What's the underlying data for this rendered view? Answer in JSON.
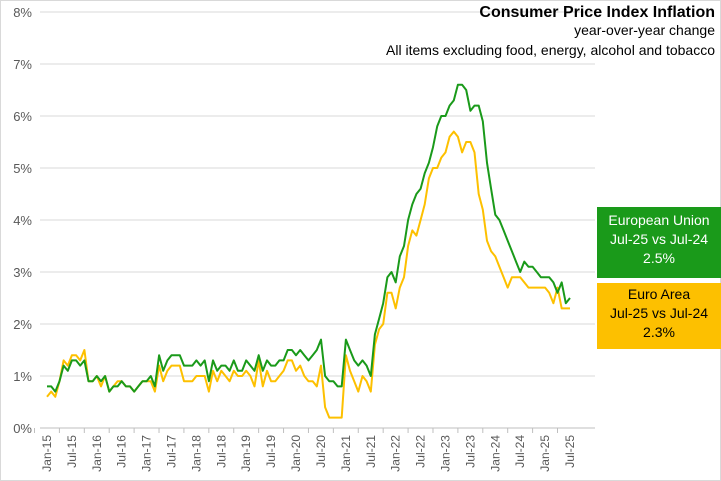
{
  "title": "Consumer Price Index Inflation",
  "subtitle": "year-over-year change",
  "subtitle2": "All items excluding food, energy, alcohol and tobacco",
  "eu_box": {
    "line1": "European Union",
    "line2": "Jul-25 vs Jul-24",
    "line3": "2.5%"
  },
  "ea_box": {
    "line1": "Euro Area",
    "line2": "Jul-25 vs Jul-24",
    "line3": "2.3%"
  },
  "chart_data": {
    "type": "line",
    "title": "Consumer Price Index Inflation",
    "ylim": [
      0,
      8
    ],
    "y_ticks": [
      "0%",
      "1%",
      "2%",
      "3%",
      "4%",
      "5%",
      "6%",
      "7%",
      "8%"
    ],
    "x_start": "Jan-15",
    "x_ticks": [
      "Jan-15",
      "Jul-15",
      "Jan-16",
      "Jul-16",
      "Jan-17",
      "Jul-17",
      "Jan-18",
      "Jul-18",
      "Jan-19",
      "Jul-19",
      "Jan-20",
      "Jul-20",
      "Jan-21",
      "Jul-21",
      "Jan-22",
      "Jul-22",
      "Jan-23",
      "Jul-23",
      "Jan-24",
      "Jul-24",
      "Jan-25",
      "Jul-25"
    ],
    "grid": true,
    "series": [
      {
        "name": "European Union",
        "color": "#1a9a1a",
        "values": [
          0.8,
          0.8,
          0.7,
          0.9,
          1.2,
          1.1,
          1.3,
          1.3,
          1.2,
          1.3,
          0.9,
          0.9,
          1.0,
          0.9,
          1.0,
          0.7,
          0.8,
          0.8,
          0.9,
          0.8,
          0.8,
          0.7,
          0.8,
          0.9,
          0.9,
          1.0,
          0.8,
          1.4,
          1.1,
          1.3,
          1.4,
          1.4,
          1.4,
          1.2,
          1.2,
          1.2,
          1.3,
          1.2,
          1.3,
          0.9,
          1.3,
          1.1,
          1.2,
          1.2,
          1.1,
          1.3,
          1.1,
          1.1,
          1.3,
          1.2,
          1.1,
          1.4,
          1.1,
          1.3,
          1.2,
          1.2,
          1.3,
          1.3,
          1.5,
          1.5,
          1.4,
          1.5,
          1.4,
          1.3,
          1.4,
          1.5,
          1.7,
          1.0,
          0.9,
          0.9,
          0.8,
          0.8,
          1.7,
          1.5,
          1.3,
          1.2,
          1.3,
          1.2,
          1.0,
          1.8,
          2.1,
          2.4,
          2.9,
          3.0,
          2.8,
          3.3,
          3.5,
          4.0,
          4.3,
          4.5,
          4.6,
          4.9,
          5.1,
          5.4,
          5.8,
          6.0,
          6.0,
          6.2,
          6.3,
          6.6,
          6.6,
          6.5,
          6.1,
          6.2,
          6.2,
          5.9,
          5.1,
          4.6,
          4.1,
          4.0,
          3.8,
          3.6,
          3.4,
          3.2,
          3.0,
          3.2,
          3.1,
          3.1,
          3.0,
          2.9,
          2.9,
          2.9,
          2.8,
          2.6,
          2.8,
          2.4,
          2.5
        ]
      },
      {
        "name": "Euro Area",
        "color": "#fdc000",
        "values": [
          0.6,
          0.7,
          0.6,
          0.9,
          1.3,
          1.2,
          1.4,
          1.4,
          1.3,
          1.5,
          0.9,
          0.9,
          1.0,
          0.8,
          1.0,
          0.7,
          0.8,
          0.9,
          0.9,
          0.8,
          0.8,
          0.7,
          0.8,
          0.9,
          0.9,
          0.9,
          0.7,
          1.2,
          0.9,
          1.1,
          1.2,
          1.2,
          1.2,
          0.9,
          0.9,
          0.9,
          1.0,
          1.0,
          1.0,
          0.7,
          1.1,
          0.9,
          1.1,
          1.0,
          0.9,
          1.1,
          1.0,
          1.0,
          1.1,
          1.0,
          0.8,
          1.3,
          0.8,
          1.1,
          0.9,
          0.9,
          1.0,
          1.1,
          1.3,
          1.3,
          1.1,
          1.2,
          1.0,
          0.9,
          0.9,
          0.8,
          1.2,
          0.4,
          0.2,
          0.2,
          0.2,
          0.2,
          1.4,
          1.1,
          0.9,
          0.7,
          1.0,
          0.9,
          0.7,
          1.6,
          1.9,
          2.0,
          2.6,
          2.6,
          2.3,
          2.7,
          2.9,
          3.5,
          3.8,
          3.7,
          4.0,
          4.3,
          4.8,
          5.0,
          5.0,
          5.2,
          5.3,
          5.6,
          5.7,
          5.6,
          5.3,
          5.5,
          5.5,
          5.3,
          4.5,
          4.2,
          3.6,
          3.4,
          3.3,
          3.1,
          2.9,
          2.7,
          2.9,
          2.9,
          2.9,
          2.8,
          2.7,
          2.7,
          2.7,
          2.7,
          2.7,
          2.6,
          2.4,
          2.7,
          2.3,
          2.3,
          2.3
        ]
      }
    ]
  }
}
